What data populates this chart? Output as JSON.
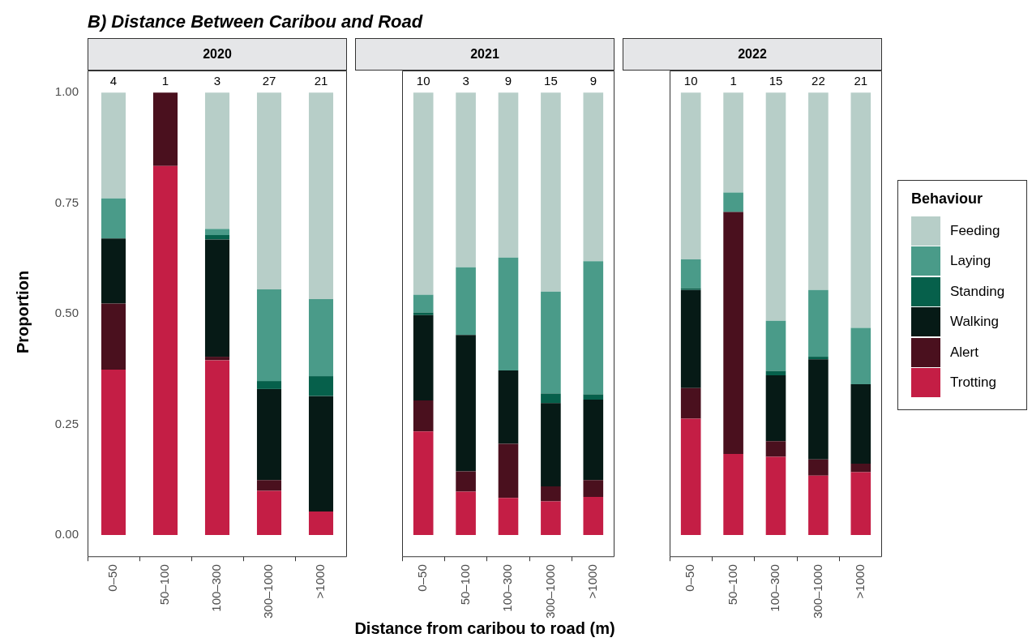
{
  "chart_data": [
    {
      "type": "bar",
      "stacked": true,
      "title": "B) Distance Between Caribou and Road",
      "subtitle": "2020",
      "ylabel": "Proportion",
      "categories": [
        "0–50",
        "50–100",
        "100–300",
        "300–1000",
        ">1000"
      ],
      "ylim": [
        -0.05,
        1.05
      ],
      "yticks": [
        {
          "value": 0,
          "label": "0.00"
        },
        {
          "value": 0.25,
          "label": "0.25"
        },
        {
          "value": 0.5,
          "label": "0.50"
        },
        {
          "value": 0.75,
          "label": "0.75"
        },
        {
          "value": 1,
          "label": "1.00"
        }
      ],
      "grid": false,
      "legend": false,
      "annotations": [
        {
          "text": "4",
          "x": "0–50",
          "y": 1
        },
        {
          "text": "1",
          "x": "50–100",
          "y": 1
        },
        {
          "text": "3",
          "x": "100–300",
          "y": 1
        },
        {
          "text": "27",
          "x": "300–1000",
          "y": 1
        },
        {
          "text": "21",
          "x": ">1000",
          "y": 1
        }
      ],
      "series": [
        {
          "color": "#c41e45",
          "values": [
            0.374,
            0.834,
            0.395,
            0.1,
            0.053
          ]
        },
        {
          "color": "#4a101e",
          "values": [
            0.149,
            0.166,
            0.008,
            0.024,
            0
          ]
        },
        {
          "color": "#061a16",
          "values": [
            0.147,
            0,
            0.265,
            0.206,
            0.261
          ]
        },
        {
          "color": "#06604b",
          "values": [
            0,
            0,
            0.01,
            0.018,
            0.045
          ]
        },
        {
          "color": "#4a9b89",
          "values": [
            0.091,
            0,
            0.014,
            0.207,
            0.174
          ]
        },
        {
          "color": "#b7cec8",
          "values": [
            0.239,
            0,
            0.308,
            0.445,
            0.467
          ]
        }
      ]
    },
    {
      "type": "bar",
      "stacked": true,
      "subtitle": "2021",
      "xlabel": "Distance from caribou to road (m)",
      "categories": [
        "0–50",
        "50–100",
        "100–300",
        "300–1000",
        ">1000"
      ],
      "ylim": [
        -0.05,
        1.05
      ],
      "tick_labels": "x",
      "grid": false,
      "legend": false,
      "annotations": [
        {
          "text": "10",
          "x": "0–50",
          "y": 1
        },
        {
          "text": "3",
          "x": "50–100",
          "y": 1
        },
        {
          "text": "9",
          "x": "100–300",
          "y": 1
        },
        {
          "text": "15",
          "x": "300–1000",
          "y": 1
        },
        {
          "text": "9",
          "x": ">1000",
          "y": 1
        }
      ],
      "series": [
        {
          "color": "#c41e45",
          "values": [
            0.234,
            0.098,
            0.084,
            0.076,
            0.086
          ]
        },
        {
          "color": "#4a101e",
          "values": [
            0.07,
            0.046,
            0.122,
            0.034,
            0.038
          ]
        },
        {
          "color": "#061a16",
          "values": [
            0.193,
            0.308,
            0.166,
            0.188,
            0.182
          ]
        },
        {
          "color": "#06604b",
          "values": [
            0.006,
            0,
            0,
            0.022,
            0.012
          ]
        },
        {
          "color": "#4a9b89",
          "values": [
            0.04,
            0.153,
            0.255,
            0.23,
            0.301
          ]
        },
        {
          "color": "#b7cec8",
          "values": [
            0.457,
            0.395,
            0.373,
            0.45,
            0.381
          ]
        }
      ]
    },
    {
      "type": "bar",
      "stacked": true,
      "subtitle": "2022",
      "categories": [
        "0–50",
        "50–100",
        "100–300",
        "300–1000",
        ">1000"
      ],
      "ylim": [
        -0.05,
        1.05
      ],
      "tick_labels": "x",
      "grid": false,
      "legend": "right",
      "legend_title": "Behaviour",
      "annotations": [
        {
          "text": "10",
          "x": "0–50",
          "y": 1
        },
        {
          "text": "1",
          "x": "50–100",
          "y": 1
        },
        {
          "text": "15",
          "x": "100–300",
          "y": 1
        },
        {
          "text": "22",
          "x": "300–1000",
          "y": 1
        },
        {
          "text": "21",
          "x": ">1000",
          "y": 1
        }
      ],
      "series": [
        {
          "name": "Trotting",
          "color": "#c41e45",
          "values": [
            0.263,
            0.183,
            0.177,
            0.134,
            0.142
          ]
        },
        {
          "name": "Alert",
          "color": "#4a101e",
          "values": [
            0.069,
            0.547,
            0.035,
            0.037,
            0.019
          ]
        },
        {
          "name": "Walking",
          "color": "#061a16",
          "values": [
            0.222,
            0,
            0.149,
            0.226,
            0.18
          ]
        },
        {
          "name": "Standing",
          "color": "#06604b",
          "values": [
            0.004,
            0,
            0.01,
            0.006,
            0
          ]
        },
        {
          "name": "Laying",
          "color": "#4a9b89",
          "values": [
            0.065,
            0.044,
            0.113,
            0.151,
            0.127
          ]
        },
        {
          "name": "Feeding",
          "color": "#b7cec8",
          "values": [
            0.377,
            0.226,
            0.516,
            0.446,
            0.532
          ]
        }
      ]
    }
  ]
}
